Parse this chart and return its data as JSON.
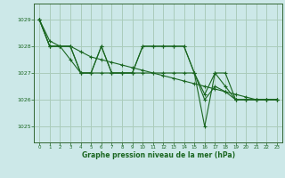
{
  "bg_color": "#cce8e8",
  "grid_color": "#aaccbb",
  "line_color": "#1a6620",
  "xlabel": "Graphe pression niveau de la mer (hPa)",
  "xlabel_color": "#1a6620",
  "tick_color": "#1a6620",
  "spine_color": "#336633",
  "xlim": [
    -0.5,
    23.5
  ],
  "ylim": [
    1024.4,
    1029.6
  ],
  "yticks": [
    1025,
    1026,
    1027,
    1028,
    1029
  ],
  "xticks": [
    0,
    1,
    2,
    3,
    4,
    5,
    6,
    7,
    8,
    9,
    10,
    11,
    12,
    13,
    14,
    15,
    16,
    17,
    18,
    19,
    20,
    21,
    22,
    23
  ],
  "series": [
    [
      1029.0,
      1028.0,
      1028.0,
      1028.0,
      1027.0,
      1027.0,
      1028.0,
      1027.0,
      1027.0,
      1027.0,
      1028.0,
      1028.0,
      1028.0,
      1028.0,
      1028.0,
      1027.0,
      1026.2,
      1027.0,
      1027.0,
      1026.0,
      1026.0,
      1026.0,
      1026.0,
      1026.0
    ],
    [
      1029.0,
      1028.0,
      1028.0,
      1028.0,
      1027.0,
      1027.0,
      1028.0,
      1027.0,
      1027.0,
      1027.0,
      1028.0,
      1028.0,
      1028.0,
      1028.0,
      1028.0,
      1027.0,
      1025.0,
      1027.0,
      1026.5,
      1026.0,
      1026.0,
      1026.0,
      1026.0,
      1026.0
    ],
    [
      1029.0,
      1028.0,
      1028.0,
      1027.5,
      1027.0,
      1027.0,
      1027.0,
      1027.0,
      1027.0,
      1027.0,
      1027.0,
      1027.0,
      1027.0,
      1027.0,
      1027.0,
      1027.0,
      1026.0,
      1026.5,
      1026.3,
      1026.0,
      1026.0,
      1026.0,
      1026.0,
      1026.0
    ],
    [
      1029.0,
      1028.2,
      1028.0,
      1028.0,
      1027.8,
      1027.6,
      1027.5,
      1027.4,
      1027.3,
      1027.2,
      1027.1,
      1027.0,
      1026.9,
      1026.8,
      1026.7,
      1026.6,
      1026.5,
      1026.4,
      1026.3,
      1026.2,
      1026.1,
      1026.0,
      1026.0,
      1026.0
    ]
  ]
}
